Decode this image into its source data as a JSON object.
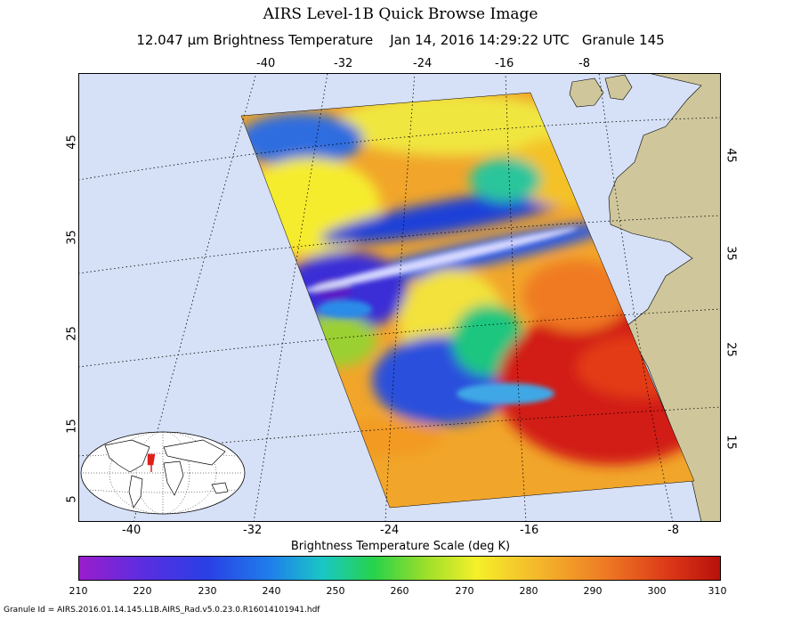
{
  "title": "AIRS Level-1B Quick Browse Image",
  "subtitle": "12.047 μm Brightness Temperature    Jan 14, 2016 14:29:22 UTC   Granule 145",
  "top_lon_labels": [
    "-40",
    "-32",
    "-24",
    "-16",
    "-8"
  ],
  "bottom_lon_labels": [
    "-40",
    "-32",
    "-24",
    "-16",
    "-8"
  ],
  "left_lat_labels": [
    "45",
    "35",
    "25",
    "15",
    "5"
  ],
  "right_lat_labels": [
    "45",
    "35",
    "25",
    "15"
  ],
  "scale_title": "Brightness Temperature Scale (deg K)",
  "colorbar_ticks": [
    "210",
    "220",
    "230",
    "240",
    "250",
    "260",
    "270",
    "280",
    "290",
    "300",
    "310"
  ],
  "colorbar_range": [
    210,
    310
  ],
  "granule_id": "Granule Id = AIRS.2016.01.14.145.L1B.AIRS_Rad.v5.0.23.0.R16014101941.hdf",
  "colors": {
    "ocean": "#d6e0f6",
    "land": "#cfc79b",
    "grid": "#000000"
  }
}
